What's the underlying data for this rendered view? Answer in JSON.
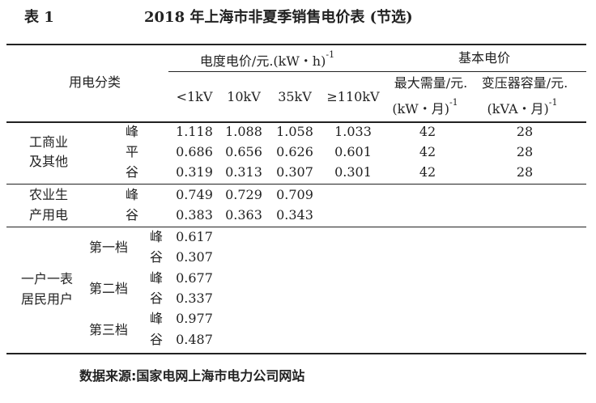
{
  "table_no": "表 1",
  "title": "2018 年上海市非夏季销售电价表 (节选)",
  "header": {
    "category": "用电分类",
    "energy_price": "电度电价/元.(kW・h)",
    "energy_price_exp": "-1",
    "basic_price": "基本电价",
    "voltages": [
      "<1kV",
      "10kV",
      "35kV",
      "≥110kV"
    ],
    "max_demand": "最大需量/元.",
    "max_demand_unit": "(kW・月)",
    "transformer": "变压器容量/元.",
    "transformer_unit": "(kVA・月)",
    "exp": "-1"
  },
  "groups": {
    "industrial": {
      "label1": "工商业",
      "label2": "及其他"
    },
    "agri": {
      "label1": "农业生",
      "label2": "产用电"
    },
    "resident": {
      "label1": "一户一表",
      "label2": "居民用户",
      "tiers": [
        "第一档",
        "第二档",
        "第三档"
      ]
    }
  },
  "rows": [
    {
      "period": "峰",
      "values": [
        "1.118",
        "1.088",
        "1.058",
        "1.033"
      ],
      "demand": "42",
      "capacity": "28"
    },
    {
      "period": "平",
      "values": [
        "0.686",
        "0.656",
        "0.626",
        "0.601"
      ],
      "demand": "42",
      "capacity": "28"
    },
    {
      "period": "谷",
      "values": [
        "0.319",
        "0.313",
        "0.307",
        "0.301"
      ],
      "demand": "42",
      "capacity": "28"
    },
    {
      "period": "峰",
      "values": [
        "0.749",
        "0.729",
        "0.709"
      ]
    },
    {
      "period": "谷",
      "values": [
        "0.383",
        "0.363",
        "0.343"
      ]
    },
    {
      "period": "峰",
      "values": [
        "0.617"
      ]
    },
    {
      "period": "谷",
      "values": [
        "0.307"
      ]
    },
    {
      "period": "峰",
      "values": [
        "0.677"
      ]
    },
    {
      "period": "谷",
      "values": [
        "0.337"
      ]
    },
    {
      "period": "峰",
      "values": [
        "0.977"
      ]
    },
    {
      "period": "谷",
      "values": [
        "0.487"
      ]
    }
  ],
  "source": "数据来源:国家电网上海市电力公司网站"
}
